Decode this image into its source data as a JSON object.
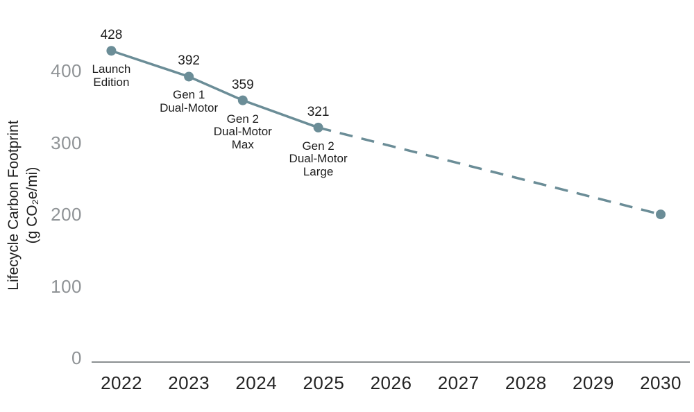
{
  "chart_data": {
    "type": "line",
    "ylabel": "Lifecycle Carbon Footprint (g CO₂e/mi)",
    "ylabel_lines": [
      "Lifecycle Carbon Footprint",
      "(g CO₂e/mi)"
    ],
    "xlim": [
      2021.55,
      2030.45
    ],
    "ylim": [
      0,
      440
    ],
    "grid": false,
    "legend_position": "none",
    "x_ticks": [
      {
        "year": 2022,
        "label": "2022"
      },
      {
        "year": 2023,
        "label": "2023"
      },
      {
        "year": 2024,
        "label": "2024"
      },
      {
        "year": 2025,
        "label": "2025"
      },
      {
        "year": 2026,
        "label": "2026"
      },
      {
        "year": 2027,
        "label": "2027"
      },
      {
        "year": 2028,
        "label": "2028"
      },
      {
        "year": 2029,
        "label": "2029"
      },
      {
        "year": 2030,
        "label": "2030"
      }
    ],
    "y_ticks": [
      {
        "value": 0,
        "label": "0"
      },
      {
        "value": 100,
        "label": "100"
      },
      {
        "value": 200,
        "label": "200"
      },
      {
        "value": 300,
        "label": "300"
      },
      {
        "value": 400,
        "label": "400"
      }
    ],
    "colors": {
      "line": "#6b8d97",
      "axis": "#8b8f91"
    },
    "series": [
      {
        "name": "Lifecycle Carbon Footprint (g CO₂e/mi)",
        "color": "#6b8d97",
        "points": [
          {
            "x": 2021.85,
            "value": 428,
            "value_label": "428",
            "model_label": [
              "Launch",
              "Edition"
            ],
            "projected": false
          },
          {
            "x": 2023.0,
            "value": 392,
            "value_label": "392",
            "model_label": [
              "Gen 1",
              "Dual-Motor"
            ],
            "projected": false
          },
          {
            "x": 2023.8,
            "value": 359,
            "value_label": "359",
            "model_label": [
              "Gen 2",
              "Dual-Motor",
              "Max"
            ],
            "projected": false
          },
          {
            "x": 2024.92,
            "value": 321,
            "value_label": "321",
            "model_label": [
              "Gen 2",
              "Dual-Motor",
              "Large"
            ],
            "projected": false
          },
          {
            "x": 2030.0,
            "value": 200,
            "value_label": "",
            "model_label": [],
            "projected": true
          }
        ]
      }
    ]
  }
}
